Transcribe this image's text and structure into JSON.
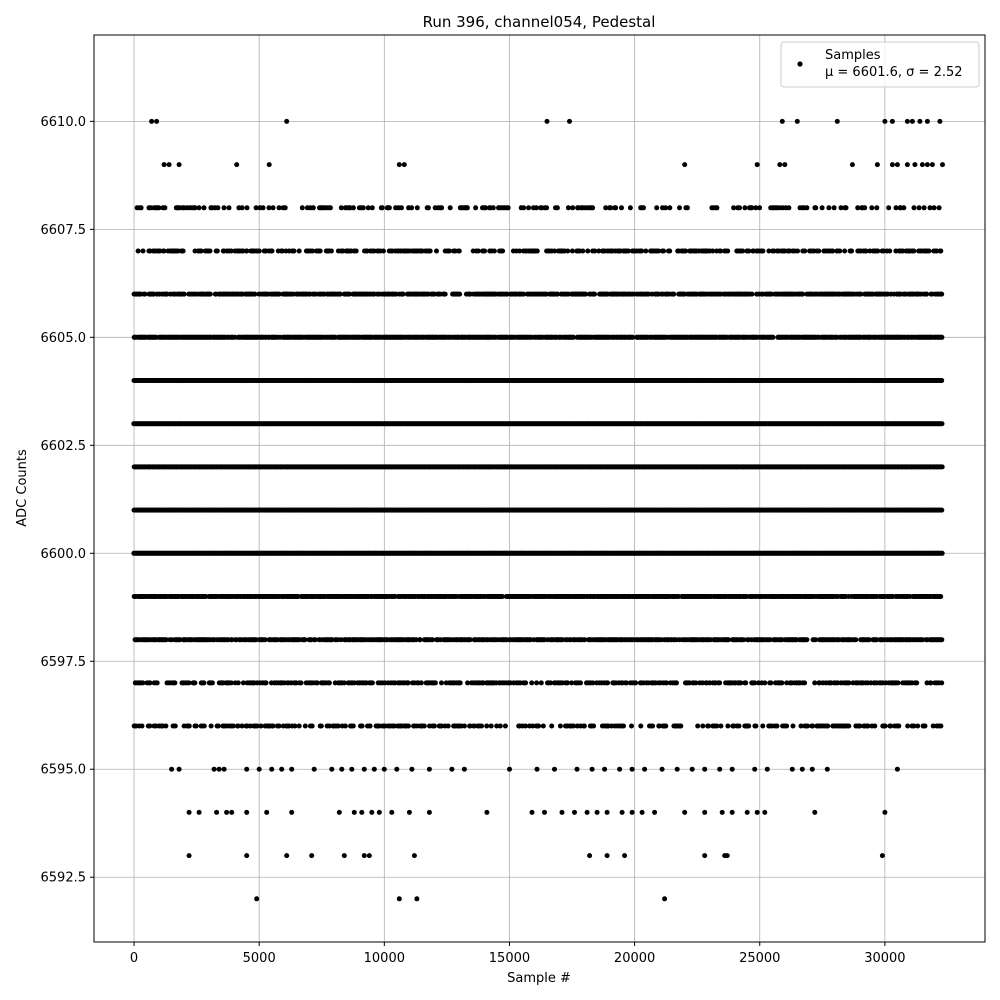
{
  "chart_data": {
    "type": "scatter",
    "title": "Run 396, channel054, Pedestal",
    "xlabel": "Sample #",
    "ylabel": "ADC Counts",
    "xlim": [
      -1600,
      34000
    ],
    "ylim": [
      6591.0,
      6612.0
    ],
    "x_ticks": [
      0,
      5000,
      10000,
      15000,
      20000,
      25000,
      30000
    ],
    "x_tick_labels": [
      "0",
      "5000",
      "10000",
      "15000",
      "20000",
      "25000",
      "30000"
    ],
    "y_ticks": [
      6592.5,
      6595.0,
      6597.5,
      6600.0,
      6602.5,
      6605.0,
      6607.5,
      6610.0
    ],
    "y_tick_labels": [
      "6592.5",
      "6595.0",
      "6597.5",
      "6600.0",
      "6602.5",
      "6605.0",
      "6607.5",
      "6610.0"
    ],
    "grid": true,
    "legend": {
      "position": "top-right",
      "entries": [
        {
          "label": "Samples",
          "sublabel": "μ = 6601.6, σ = 2.52",
          "color": "#000000"
        }
      ]
    },
    "marker_color": "#000000",
    "x_range": [
      0,
      32300
    ],
    "levels": [
      {
        "y": 6600,
        "x_ranges": [
          [
            0,
            32300
          ]
        ],
        "density": 1.0
      },
      {
        "y": 6601,
        "x_ranges": [
          [
            0,
            32300
          ]
        ],
        "density": 1.0
      },
      {
        "y": 6602,
        "x_ranges": [
          [
            0,
            32300
          ]
        ],
        "density": 1.0
      },
      {
        "y": 6603,
        "x_ranges": [
          [
            0,
            32300
          ]
        ],
        "density": 1.0
      },
      {
        "y": 6604,
        "x_ranges": [
          [
            0,
            32300
          ]
        ],
        "density": 1.0
      },
      {
        "y": 6599,
        "x_ranges": [
          [
            0,
            32300
          ]
        ],
        "density": 0.85
      },
      {
        "y": 6605,
        "x_ranges": [
          [
            0,
            32300
          ]
        ],
        "density": 0.85
      },
      {
        "y": 6598,
        "x_ranges": [
          [
            0,
            32300
          ]
        ],
        "density": 0.7
      },
      {
        "y": 6606,
        "x_ranges": [
          [
            0,
            32300
          ]
        ],
        "density": 0.65
      },
      {
        "y": 6597,
        "x_ranges": [
          [
            0,
            32300
          ]
        ],
        "density": 0.45
      },
      {
        "y": 6607,
        "x_ranges": [
          [
            0,
            32300
          ]
        ],
        "density": 0.4
      },
      {
        "y": 6596,
        "x_ranges": [
          [
            0,
            32300
          ]
        ],
        "density": 0.3
      },
      {
        "y": 6608,
        "x_ranges": [
          [
            0,
            32300
          ]
        ],
        "density": 0.25
      }
    ],
    "sparse_points": [
      {
        "x": 1500,
        "y": 6595
      },
      {
        "x": 1800,
        "y": 6595
      },
      {
        "x": 3200,
        "y": 6595
      },
      {
        "x": 3400,
        "y": 6595
      },
      {
        "x": 3600,
        "y": 6595
      },
      {
        "x": 4500,
        "y": 6595
      },
      {
        "x": 5000,
        "y": 6595
      },
      {
        "x": 5500,
        "y": 6595
      },
      {
        "x": 5900,
        "y": 6595
      },
      {
        "x": 6300,
        "y": 6595
      },
      {
        "x": 7200,
        "y": 6595
      },
      {
        "x": 7900,
        "y": 6595
      },
      {
        "x": 8300,
        "y": 6595
      },
      {
        "x": 8700,
        "y": 6595
      },
      {
        "x": 9200,
        "y": 6595
      },
      {
        "x": 9600,
        "y": 6595
      },
      {
        "x": 10000,
        "y": 6595
      },
      {
        "x": 10500,
        "y": 6595
      },
      {
        "x": 11100,
        "y": 6595
      },
      {
        "x": 11800,
        "y": 6595
      },
      {
        "x": 12700,
        "y": 6595
      },
      {
        "x": 13200,
        "y": 6595
      },
      {
        "x": 15000,
        "y": 6595
      },
      {
        "x": 16100,
        "y": 6595
      },
      {
        "x": 16800,
        "y": 6595
      },
      {
        "x": 17700,
        "y": 6595
      },
      {
        "x": 18300,
        "y": 6595
      },
      {
        "x": 18800,
        "y": 6595
      },
      {
        "x": 19400,
        "y": 6595
      },
      {
        "x": 19900,
        "y": 6595
      },
      {
        "x": 20400,
        "y": 6595
      },
      {
        "x": 21100,
        "y": 6595
      },
      {
        "x": 21700,
        "y": 6595
      },
      {
        "x": 22300,
        "y": 6595
      },
      {
        "x": 22800,
        "y": 6595
      },
      {
        "x": 23400,
        "y": 6595
      },
      {
        "x": 23900,
        "y": 6595
      },
      {
        "x": 24800,
        "y": 6595
      },
      {
        "x": 25300,
        "y": 6595
      },
      {
        "x": 26300,
        "y": 6595
      },
      {
        "x": 26700,
        "y": 6595
      },
      {
        "x": 27100,
        "y": 6595
      },
      {
        "x": 27700,
        "y": 6595
      },
      {
        "x": 30500,
        "y": 6595
      },
      {
        "x": 2200,
        "y": 6594
      },
      {
        "x": 2600,
        "y": 6594
      },
      {
        "x": 3300,
        "y": 6594
      },
      {
        "x": 3700,
        "y": 6594
      },
      {
        "x": 3900,
        "y": 6594
      },
      {
        "x": 4500,
        "y": 6594
      },
      {
        "x": 5300,
        "y": 6594
      },
      {
        "x": 6300,
        "y": 6594
      },
      {
        "x": 8200,
        "y": 6594
      },
      {
        "x": 8800,
        "y": 6594
      },
      {
        "x": 9100,
        "y": 6594
      },
      {
        "x": 9500,
        "y": 6594
      },
      {
        "x": 9800,
        "y": 6594
      },
      {
        "x": 10300,
        "y": 6594
      },
      {
        "x": 11000,
        "y": 6594
      },
      {
        "x": 11800,
        "y": 6594
      },
      {
        "x": 14100,
        "y": 6594
      },
      {
        "x": 15900,
        "y": 6594
      },
      {
        "x": 16400,
        "y": 6594
      },
      {
        "x": 17100,
        "y": 6594
      },
      {
        "x": 17600,
        "y": 6594
      },
      {
        "x": 18100,
        "y": 6594
      },
      {
        "x": 18500,
        "y": 6594
      },
      {
        "x": 18900,
        "y": 6594
      },
      {
        "x": 19500,
        "y": 6594
      },
      {
        "x": 19900,
        "y": 6594
      },
      {
        "x": 20300,
        "y": 6594
      },
      {
        "x": 20800,
        "y": 6594
      },
      {
        "x": 22000,
        "y": 6594
      },
      {
        "x": 22800,
        "y": 6594
      },
      {
        "x": 23500,
        "y": 6594
      },
      {
        "x": 23900,
        "y": 6594
      },
      {
        "x": 24500,
        "y": 6594
      },
      {
        "x": 24900,
        "y": 6594
      },
      {
        "x": 25200,
        "y": 6594
      },
      {
        "x": 27200,
        "y": 6594
      },
      {
        "x": 30000,
        "y": 6594
      },
      {
        "x": 2200,
        "y": 6593
      },
      {
        "x": 4500,
        "y": 6593
      },
      {
        "x": 6100,
        "y": 6593
      },
      {
        "x": 7100,
        "y": 6593
      },
      {
        "x": 8400,
        "y": 6593
      },
      {
        "x": 9200,
        "y": 6593
      },
      {
        "x": 9400,
        "y": 6593
      },
      {
        "x": 11200,
        "y": 6593
      },
      {
        "x": 18200,
        "y": 6593
      },
      {
        "x": 18900,
        "y": 6593
      },
      {
        "x": 19600,
        "y": 6593
      },
      {
        "x": 22800,
        "y": 6593
      },
      {
        "x": 23600,
        "y": 6593
      },
      {
        "x": 23700,
        "y": 6593
      },
      {
        "x": 29900,
        "y": 6593
      },
      {
        "x": 4900,
        "y": 6592
      },
      {
        "x": 10600,
        "y": 6592
      },
      {
        "x": 11300,
        "y": 6592
      },
      {
        "x": 21200,
        "y": 6592
      },
      {
        "x": 1200,
        "y": 6609
      },
      {
        "x": 1400,
        "y": 6609
      },
      {
        "x": 1800,
        "y": 6609
      },
      {
        "x": 4100,
        "y": 6609
      },
      {
        "x": 5400,
        "y": 6609
      },
      {
        "x": 10600,
        "y": 6609
      },
      {
        "x": 10800,
        "y": 6609
      },
      {
        "x": 22000,
        "y": 6609
      },
      {
        "x": 24900,
        "y": 6609
      },
      {
        "x": 25800,
        "y": 6609
      },
      {
        "x": 26000,
        "y": 6609
      },
      {
        "x": 28700,
        "y": 6609
      },
      {
        "x": 29700,
        "y": 6609
      },
      {
        "x": 30300,
        "y": 6609
      },
      {
        "x": 30500,
        "y": 6609
      },
      {
        "x": 30900,
        "y": 6609
      },
      {
        "x": 31200,
        "y": 6609
      },
      {
        "x": 31500,
        "y": 6609
      },
      {
        "x": 31700,
        "y": 6609
      },
      {
        "x": 31900,
        "y": 6609
      },
      {
        "x": 32300,
        "y": 6609
      },
      {
        "x": 700,
        "y": 6610
      },
      {
        "x": 900,
        "y": 6610
      },
      {
        "x": 6100,
        "y": 6610
      },
      {
        "x": 16500,
        "y": 6610
      },
      {
        "x": 17400,
        "y": 6610
      },
      {
        "x": 25900,
        "y": 6610
      },
      {
        "x": 26500,
        "y": 6610
      },
      {
        "x": 28100,
        "y": 6610
      },
      {
        "x": 30000,
        "y": 6610
      },
      {
        "x": 30300,
        "y": 6610
      },
      {
        "x": 30900,
        "y": 6610
      },
      {
        "x": 31100,
        "y": 6610
      },
      {
        "x": 31400,
        "y": 6610
      },
      {
        "x": 31700,
        "y": 6610
      },
      {
        "x": 32200,
        "y": 6610
      }
    ]
  }
}
